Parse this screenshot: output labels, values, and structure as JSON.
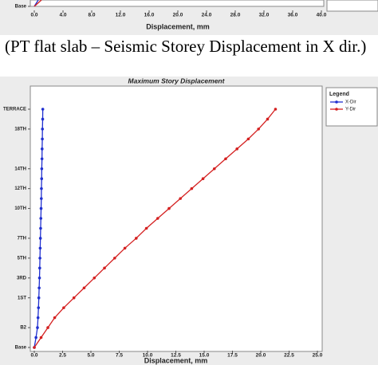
{
  "caption": "(PT flat slab – Seismic Storey Displacement in X dir.)",
  "chart_data": [
    {
      "type": "line",
      "xlabel": "Displacement, mm",
      "categories": [
        "Base"
      ],
      "xlim": [
        0,
        40
      ],
      "xticks": [
        {
          "value": 0,
          "label": "0.0"
        },
        {
          "value": 4,
          "label": "4.0"
        },
        {
          "value": 8,
          "label": "8.0"
        },
        {
          "value": 12,
          "label": "12.0"
        },
        {
          "value": 16,
          "label": "16.0"
        },
        {
          "value": 20,
          "label": "20.0"
        },
        {
          "value": 24,
          "label": "24.0"
        },
        {
          "value": 28,
          "label": "28.0"
        },
        {
          "value": 32,
          "label": "32.0"
        },
        {
          "value": 36,
          "label": "36.0"
        },
        {
          "value": 40,
          "label": "40.0"
        }
      ]
    },
    {
      "type": "line",
      "title": "Maximum Story Displacement",
      "xlabel": "Displacement, mm",
      "legend_title": "Legend",
      "legend": "upper right",
      "categories": [
        "Base",
        null,
        "B2",
        null,
        null,
        "1ST",
        null,
        "3RD",
        null,
        "5TH",
        null,
        "7TH",
        null,
        null,
        "10TH",
        null,
        "12TH",
        null,
        "14TH",
        null,
        null,
        null,
        "18TH",
        null,
        "TERRACE"
      ],
      "xlim": [
        0,
        25
      ],
      "xticks": [
        {
          "value": 0,
          "label": "0.0"
        },
        2.5,
        {
          "value": 5,
          "label": "5.0"
        },
        7.5,
        {
          "value": 10,
          "label": "10.0"
        },
        12.5,
        {
          "value": 15,
          "label": "15.0"
        },
        17.5,
        {
          "value": 20,
          "label": "20.0"
        },
        22.5,
        {
          "value": 25,
          "label": "25.0"
        }
      ],
      "series": [
        {
          "name": "X-Dir",
          "color": "#1f2fd0",
          "values": [
            0,
            0.15,
            0.28,
            0.33,
            0.37,
            0.4,
            0.43,
            0.46,
            0.48,
            0.5,
            0.52,
            0.54,
            0.56,
            0.58,
            0.6,
            0.62,
            0.63,
            0.65,
            0.66,
            0.68,
            0.69,
            0.71,
            0.72,
            0.74,
            0.75
          ]
        },
        {
          "name": "Y-Dir",
          "color": "#d42020",
          "values": [
            0,
            0.6,
            1.2,
            1.8,
            2.6,
            3.5,
            4.4,
            5.3,
            6.2,
            7.1,
            8.0,
            9.0,
            9.9,
            10.9,
            11.9,
            12.9,
            13.9,
            14.9,
            15.9,
            16.9,
            17.9,
            18.9,
            19.8,
            20.6,
            21.3
          ]
        }
      ]
    }
  ]
}
